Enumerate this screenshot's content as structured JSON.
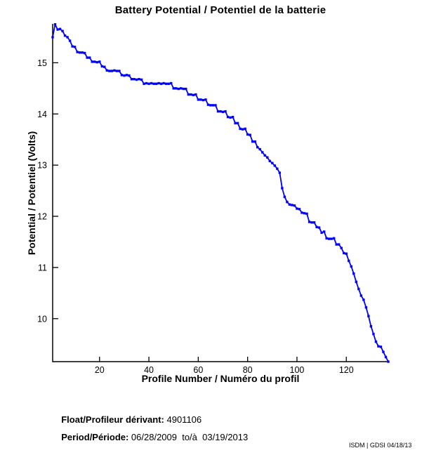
{
  "chart_data": {
    "type": "line",
    "title": "Battery Potential / Potentiel de la batterie",
    "xlabel": "Profile Number / Numéro du profil",
    "ylabel": "Potential / Potentiel (Volts)",
    "x_start": 1,
    "xlim": [
      1,
      137
    ],
    "ylim": [
      9.16,
      15.76
    ],
    "x_ticks": [
      20,
      40,
      60,
      80,
      100,
      120
    ],
    "y_ticks": [
      10,
      11,
      12,
      13,
      14,
      15
    ],
    "line_color": "#0000FF",
    "axis_color": "#000000",
    "marker": "square",
    "legend": "none",
    "grid": false,
    "values": [
      15.5,
      15.75,
      15.65,
      15.66,
      15.62,
      15.53,
      15.5,
      15.43,
      15.32,
      15.31,
      15.21,
      15.2,
      15.2,
      15.19,
      15.1,
      15.1,
      15.02,
      15.02,
      15.01,
      15.02,
      14.93,
      14.92,
      14.85,
      14.84,
      14.84,
      14.85,
      14.84,
      14.84,
      14.76,
      14.75,
      14.76,
      14.75,
      14.68,
      14.68,
      14.67,
      14.68,
      14.67,
      14.59,
      14.6,
      14.59,
      14.6,
      14.59,
      14.59,
      14.6,
      14.59,
      14.6,
      14.59,
      14.59,
      14.6,
      14.5,
      14.5,
      14.49,
      14.5,
      14.49,
      14.49,
      14.38,
      14.38,
      14.37,
      14.38,
      14.28,
      14.28,
      14.27,
      14.28,
      14.18,
      14.17,
      14.17,
      14.17,
      14.05,
      14.05,
      14.04,
      14.05,
      13.94,
      13.93,
      13.94,
      13.82,
      13.82,
      13.71,
      13.7,
      13.71,
      13.6,
      13.59,
      13.46,
      13.46,
      13.35,
      13.31,
      13.25,
      13.19,
      13.15,
      13.08,
      13.04,
      12.99,
      12.93,
      12.85,
      12.55,
      12.38,
      12.28,
      12.23,
      12.22,
      12.21,
      12.15,
      12.14,
      12.07,
      12.06,
      12.05,
      11.89,
      11.88,
      11.88,
      11.79,
      11.78,
      11.68,
      11.7,
      11.57,
      11.56,
      11.56,
      11.57,
      11.45,
      11.45,
      11.38,
      11.28,
      11.27,
      11.13,
      11.02,
      10.88,
      10.72,
      10.58,
      10.45,
      10.37,
      10.22,
      10.05,
      9.85,
      9.7,
      9.55,
      9.46,
      9.45,
      9.35,
      9.25,
      9.16
    ]
  },
  "footer": {
    "float_label": "Float/Profileur dérivant:",
    "float_value": " 4901106",
    "period_label": "Period/Période:",
    "period_value": " 06/28/2009  to/à  03/19/2013",
    "watermark": "ISDM | GDSI 04/18/13"
  }
}
